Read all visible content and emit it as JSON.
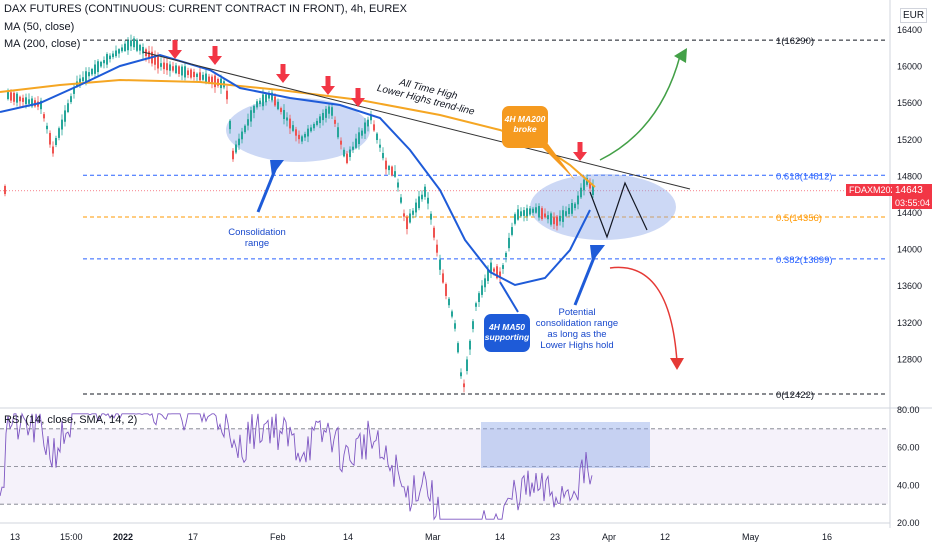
{
  "header": {
    "title": "DAX FUTURES (CONTINUOUS: CURRENT CONTRACT IN FRONT), 4h, EUREX",
    "ma50_label": "MA (50, close)",
    "ma200_label": "MA (200, close)",
    "rsi_label": "RSI (14, close, SMA, 14, 2)",
    "currency": "EUR"
  },
  "colors": {
    "up": "#26a69a",
    "down": "#ef5350",
    "ma50": "#1e5bd8",
    "ma200": "#f5a623",
    "rsi": "#7e57c2",
    "fib": "#2962ff",
    "fib_mid": "#ff9800",
    "arrow": "#f23645",
    "green_arrow": "#43a047",
    "red_arrow": "#e53935",
    "zone": "#8fa8e8"
  },
  "price_axis": {
    "ticks": [
      "16400",
      "16000",
      "15600",
      "15200",
      "14800",
      "14400",
      "14000",
      "13600",
      "13200",
      "12800"
    ],
    "symbol": "FDAXM2022",
    "last_price": "14643",
    "countdown": "03:55:04"
  },
  "rsi_axis": {
    "ticks": [
      "80.00",
      "60.00",
      "40.00",
      "20.00"
    ]
  },
  "time_axis": {
    "labels": [
      "13",
      "15:00",
      "2022",
      "17",
      "Feb",
      "14",
      "Mar",
      "14",
      "23",
      "Apr",
      "12",
      "May",
      "16"
    ]
  },
  "fib_levels": [
    {
      "label": "1(16290)",
      "value": 16290
    },
    {
      "label": "0.618(14812)",
      "value": 14812
    },
    {
      "label": "0.5(14356)",
      "value": 14356
    },
    {
      "label": "0.382(13899)",
      "value": 13899
    },
    {
      "label": "0(12422)",
      "value": 12422
    }
  ],
  "annotations": {
    "trendline": "All Time High\nLower Highs trend-line",
    "consolidation": "Consolidation\nrange",
    "ma200_broke": "4H MA200\nbroke",
    "ma50_support": "4H MA50\nsupporting",
    "potential": "Potential\nconsolidation range\nas long as the\nLower Highs hold"
  },
  "chart_data": {
    "type": "line",
    "title": "DAX FUTURES (CONTINUOUS: CURRENT CONTRACT IN FRONT), 4h, EUREX",
    "ylabel": "EUR",
    "ylim": [
      12350,
      16600
    ],
    "series": [
      {
        "name": "Price",
        "x_dates": [
          "2021-12-10",
          "2021-12-20",
          "2021-12-30",
          "2022-01-05",
          "2022-01-12",
          "2022-01-18",
          "2022-01-25",
          "2022-02-02",
          "2022-02-10",
          "2022-02-16",
          "2022-02-24",
          "2022-03-01",
          "2022-03-07",
          "2022-03-10",
          "2022-03-16",
          "2022-03-22",
          "2022-03-29",
          "2022-03-31"
        ],
        "values": [
          15600,
          15300,
          15900,
          16290,
          16050,
          15700,
          15000,
          15500,
          15300,
          15350,
          13900,
          14300,
          12422,
          13300,
          14300,
          14350,
          14812,
          14643
        ]
      },
      {
        "name": "MA (50, close)",
        "values": [
          15400,
          15500,
          15900,
          16050,
          15950,
          15700,
          15400,
          15350,
          15250,
          15100,
          14700,
          14300,
          13900,
          13650,
          13700,
          13900,
          14300,
          14450
        ]
      },
      {
        "name": "MA (200, close)",
        "values": [
          15600,
          15620,
          15700,
          15760,
          15780,
          15700,
          15650,
          15600,
          15540,
          15480,
          15400,
          15250,
          15100,
          15000,
          14950,
          14900,
          14780,
          14700
        ]
      }
    ],
    "rsi": {
      "name": "RSI (14, close, SMA, 14, 2)",
      "ylim": [
        20,
        80
      ],
      "levels": [
        70,
        50,
        30
      ]
    }
  }
}
